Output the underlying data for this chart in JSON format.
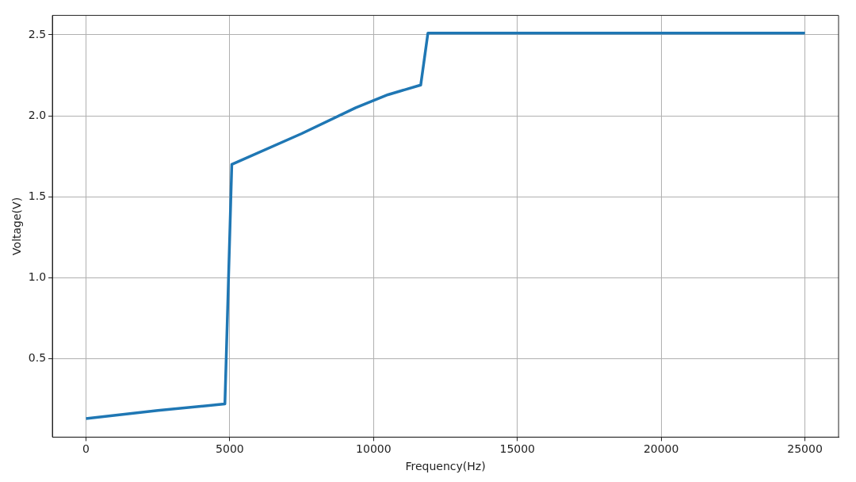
{
  "chart_data": {
    "type": "line",
    "xlabel": "Frequency(Hz)",
    "ylabel": "Voltage(V)",
    "x": [
      0,
      2500,
      4830,
      5070,
      7500,
      9380,
      10500,
      11640,
      11890,
      15000,
      20000,
      25000
    ],
    "series": [
      {
        "color": "#1f77b4",
        "values": [
          0.13,
          0.18,
          0.22,
          1.7,
          1.89,
          2.05,
          2.13,
          2.19,
          2.51,
          2.51,
          2.51,
          2.51
        ]
      }
    ],
    "xlim": [
      -1170,
      26170
    ],
    "ylim": [
      0.015,
      2.62
    ],
    "xticks": [
      0,
      5000,
      10000,
      15000,
      20000,
      25000
    ],
    "yticks": [
      0.5,
      {
        "value": 1,
        "label": "1.0"
      },
      1.5,
      {
        "value": 2,
        "label": "2.0"
      },
      2.5
    ],
    "grid": true,
    "marker": "none",
    "line_style": "solid"
  }
}
